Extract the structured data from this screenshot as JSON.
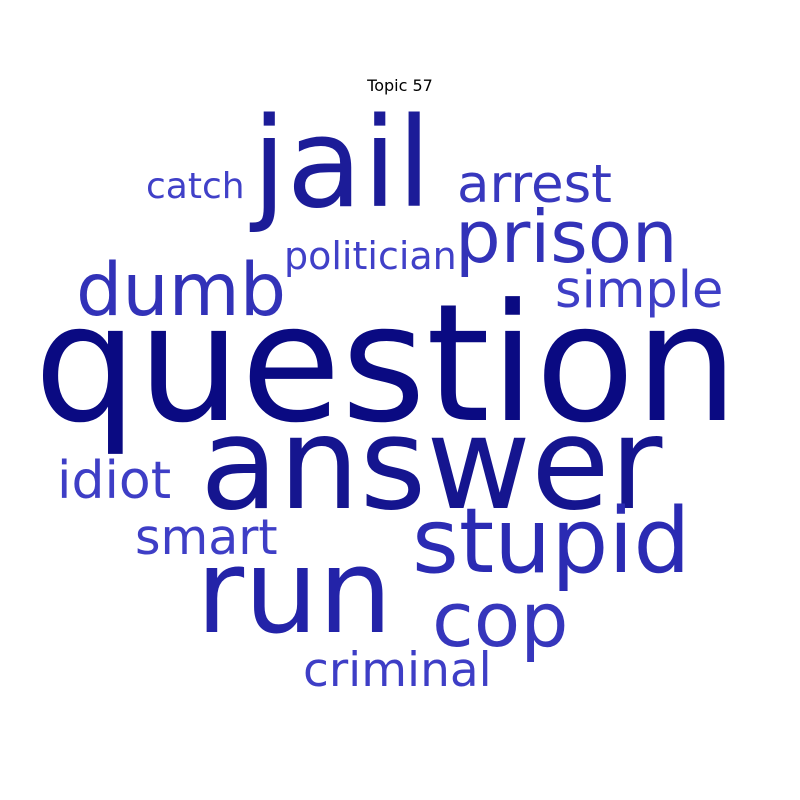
{
  "title": "Topic 57",
  "words": {
    "question": {
      "text": "question",
      "color": "#0a0a82"
    },
    "answer": {
      "text": "answer",
      "color": "#15158f"
    },
    "jail": {
      "text": "jail",
      "color": "#1c1c98"
    },
    "run": {
      "text": "run",
      "color": "#2323a8"
    },
    "stupid": {
      "text": "stupid",
      "color": "#2b2bb3"
    },
    "prison": {
      "text": "prison",
      "color": "#3232b8"
    },
    "dumb": {
      "text": "dumb",
      "color": "#3232b8"
    },
    "cop": {
      "text": "cop",
      "color": "#3636bc"
    },
    "arrest": {
      "text": "arrest",
      "color": "#3838be"
    },
    "simple": {
      "text": "simple",
      "color": "#3e3ec6"
    },
    "smart": {
      "text": "smart",
      "color": "#3e3ec6"
    },
    "idiot": {
      "text": "idiot",
      "color": "#3e3ec6"
    },
    "criminal": {
      "text": "criminal",
      "color": "#3e3ec6"
    },
    "catch": {
      "text": "catch",
      "color": "#4040c8"
    },
    "politician": {
      "text": "politician",
      "color": "#4040c8"
    }
  }
}
